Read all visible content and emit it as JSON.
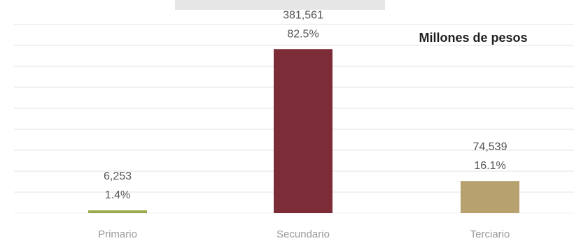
{
  "chart_data": {
    "type": "bar",
    "title": "",
    "units_label": "Millones de pesos",
    "categories": [
      "Primario",
      "Secundario",
      "Terciario"
    ],
    "values": [
      6253,
      381561,
      74539
    ],
    "value_labels": [
      "6,253",
      "381,561",
      "74,539"
    ],
    "percent_labels": [
      "1.4%",
      "82.5%",
      "16.1%"
    ],
    "colors": [
      "#9aaa4a",
      "#7b2c36",
      "#b7a26f"
    ],
    "ylim": [
      0,
      460000
    ],
    "grid": true,
    "legend": "none"
  }
}
